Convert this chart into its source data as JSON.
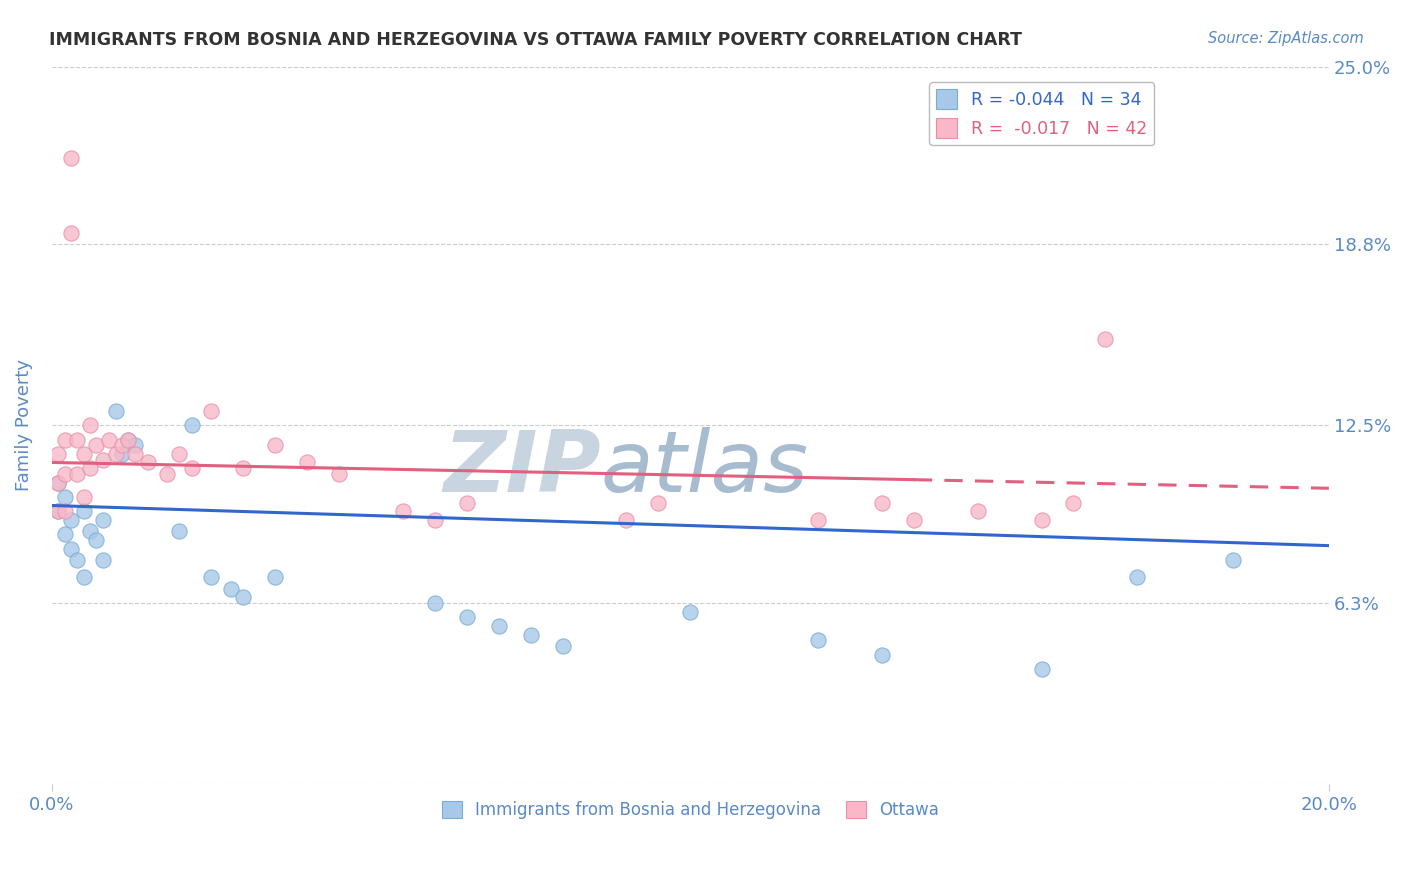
{
  "title": "IMMIGRANTS FROM BOSNIA AND HERZEGOVINA VS OTTAWA FAMILY POVERTY CORRELATION CHART",
  "source_text": "Source: ZipAtlas.com",
  "ylabel": "Family Poverty",
  "xlim": [
    0.0,
    0.2
  ],
  "ylim": [
    0.0,
    0.25
  ],
  "yticks": [
    0.0,
    0.063,
    0.125,
    0.188,
    0.25
  ],
  "ytick_labels": [
    "",
    "6.3%",
    "12.5%",
    "18.8%",
    "25.0%"
  ],
  "xticks": [
    0.0,
    0.2
  ],
  "xtick_labels": [
    "0.0%",
    "20.0%"
  ],
  "series_blue": {
    "x": [
      0.001,
      0.001,
      0.002,
      0.002,
      0.003,
      0.003,
      0.004,
      0.005,
      0.005,
      0.006,
      0.007,
      0.008,
      0.008,
      0.01,
      0.011,
      0.012,
      0.013,
      0.02,
      0.022,
      0.025,
      0.028,
      0.03,
      0.035,
      0.06,
      0.065,
      0.07,
      0.075,
      0.08,
      0.1,
      0.12,
      0.13,
      0.155,
      0.17,
      0.185
    ],
    "y": [
      0.105,
      0.095,
      0.1,
      0.087,
      0.092,
      0.082,
      0.078,
      0.095,
      0.072,
      0.088,
      0.085,
      0.092,
      0.078,
      0.13,
      0.115,
      0.12,
      0.118,
      0.088,
      0.125,
      0.072,
      0.068,
      0.065,
      0.072,
      0.063,
      0.058,
      0.055,
      0.052,
      0.048,
      0.06,
      0.05,
      0.045,
      0.04,
      0.072,
      0.078
    ],
    "color": "#a8c8e8",
    "edge_color": "#7aadd4",
    "R": -0.044,
    "N": 34
  },
  "series_pink": {
    "x": [
      0.001,
      0.001,
      0.001,
      0.002,
      0.002,
      0.002,
      0.003,
      0.003,
      0.004,
      0.004,
      0.005,
      0.005,
      0.006,
      0.006,
      0.007,
      0.008,
      0.009,
      0.01,
      0.011,
      0.012,
      0.013,
      0.015,
      0.018,
      0.02,
      0.022,
      0.025,
      0.03,
      0.035,
      0.04,
      0.045,
      0.055,
      0.06,
      0.065,
      0.09,
      0.095,
      0.12,
      0.13,
      0.135,
      0.145,
      0.155,
      0.16,
      0.165
    ],
    "y": [
      0.115,
      0.105,
      0.095,
      0.12,
      0.108,
      0.095,
      0.218,
      0.192,
      0.12,
      0.108,
      0.115,
      0.1,
      0.125,
      0.11,
      0.118,
      0.113,
      0.12,
      0.115,
      0.118,
      0.12,
      0.115,
      0.112,
      0.108,
      0.115,
      0.11,
      0.13,
      0.11,
      0.118,
      0.112,
      0.108,
      0.095,
      0.092,
      0.098,
      0.092,
      0.098,
      0.092,
      0.098,
      0.092,
      0.095,
      0.092,
      0.098,
      0.155
    ],
    "color": "#f8b8c8",
    "edge_color": "#e890a8",
    "R": -0.017,
    "N": 42
  },
  "trend_blue": {
    "x_start": 0.0,
    "x_end": 0.2,
    "y_start": 0.097,
    "y_end": 0.083,
    "color": "#3366cc",
    "linewidth": 2.2,
    "linestyle": "solid"
  },
  "trend_pink_solid": {
    "x_start": 0.0,
    "x_end": 0.135,
    "y_start": 0.112,
    "y_end": 0.106,
    "color": "#e06080",
    "linewidth": 2.2,
    "linestyle": "solid"
  },
  "trend_pink_dashed": {
    "x_start": 0.135,
    "x_end": 0.2,
    "y_start": 0.106,
    "y_end": 0.103,
    "color": "#e06080",
    "linewidth": 2.2,
    "linestyle": "dashed"
  },
  "watermark_zip": "ZIP",
  "watermark_atlas": "atlas",
  "watermark_zip_color": "#c8d4e0",
  "watermark_atlas_color": "#a8bcd0",
  "background_color": "#ffffff",
  "grid_color": "#cccccc",
  "axis_label_color": "#5a8ac6",
  "title_color": "#333333",
  "legend_blue_color": "#3366cc",
  "legend_pink_color": "#e06080",
  "legend_blue_label": "R = -0.044   N = 34",
  "legend_pink_label": "R =  -0.017   N = 42",
  "bottom_legend_blue_label": "Immigrants from Bosnia and Herzegovina",
  "bottom_legend_pink_label": "Ottawa"
}
